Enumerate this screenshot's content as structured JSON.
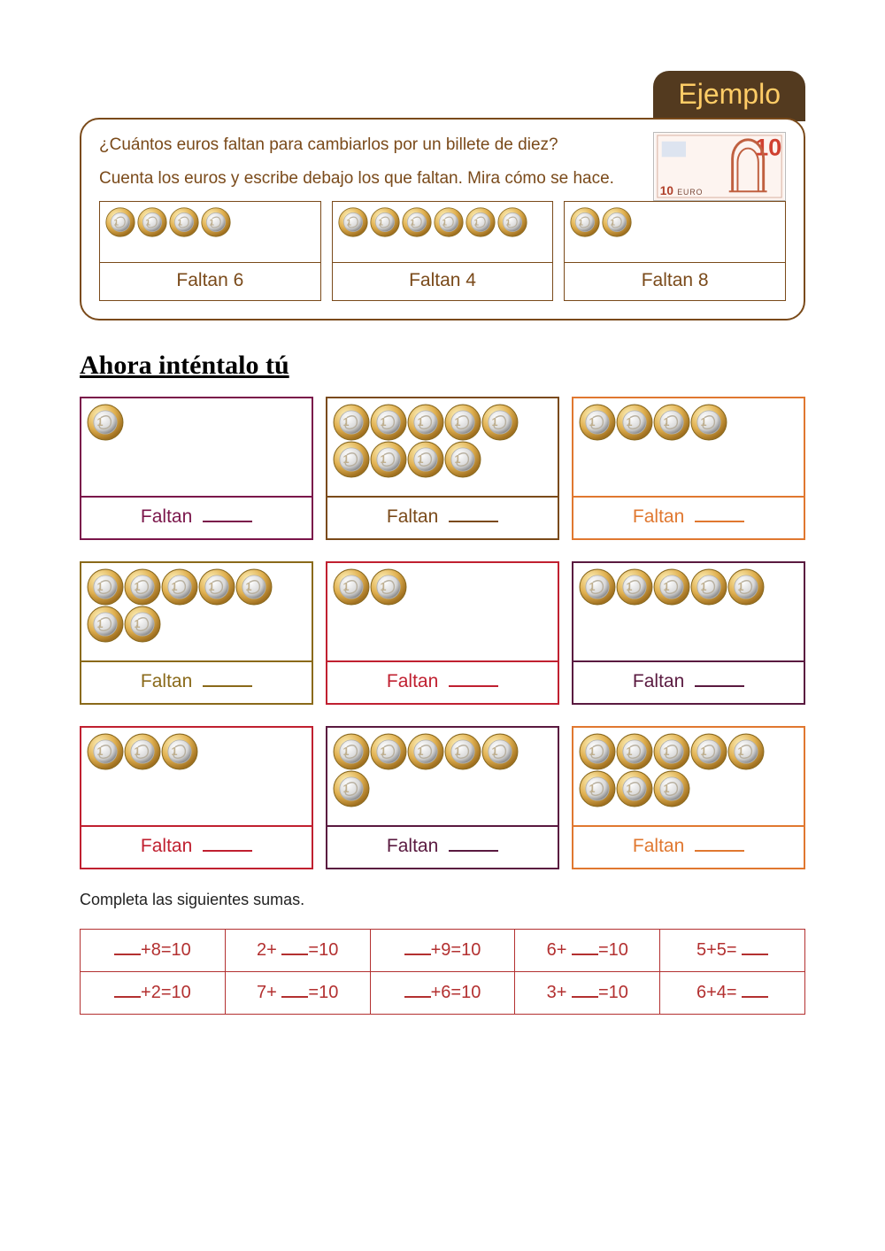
{
  "tab_label": "Ejemplo",
  "colors": {
    "tab_bg": "#533a1f",
    "tab_text": "#e5a83a",
    "example_border": "#7a4a1a",
    "example_text": "#7a4a1a",
    "sums_border": "#b33030",
    "sums_text": "#b33030"
  },
  "example": {
    "question": "¿Cuántos euros faltan para cambiarlos por un billete de diez?",
    "instruction": "Cuenta los euros y escribe debajo los que faltan. Mira cómo se hace.",
    "banknote_value": "10",
    "banknote_label": "EURO",
    "cells": [
      {
        "coins": 4,
        "answer": "Faltan 6"
      },
      {
        "coins": 6,
        "answer": "Faltan 4"
      },
      {
        "coins": 2,
        "answer": "Faltan 8"
      }
    ]
  },
  "try_section_title": "Ahora inténtalo tú",
  "faltan_label": "Faltan",
  "try_rows": [
    [
      {
        "coins": 1,
        "color": "#7a154a"
      },
      {
        "coins": 9,
        "color": "#7a4a1a"
      },
      {
        "coins": 4,
        "color": "#e07830"
      }
    ],
    [
      {
        "coins": 7,
        "color": "#8a6a1a"
      },
      {
        "coins": 2,
        "color": "#c02030"
      },
      {
        "coins": 5,
        "color": "#5a1a40"
      }
    ],
    [
      {
        "coins": 3,
        "color": "#c02030"
      },
      {
        "coins": 6,
        "color": "#5a1a40"
      },
      {
        "coins": 8,
        "color": "#e07830"
      }
    ]
  ],
  "sums_title": "Completa las siguientes sumas.",
  "sums": [
    [
      "___+8=10",
      "2+ ___=10",
      "___+9=10",
      "6+ ___=10",
      "5+5= ___"
    ],
    [
      "___+2=10",
      "7+ ___=10",
      "___+6=10",
      "3+ ___=10",
      "6+4= ___"
    ]
  ]
}
